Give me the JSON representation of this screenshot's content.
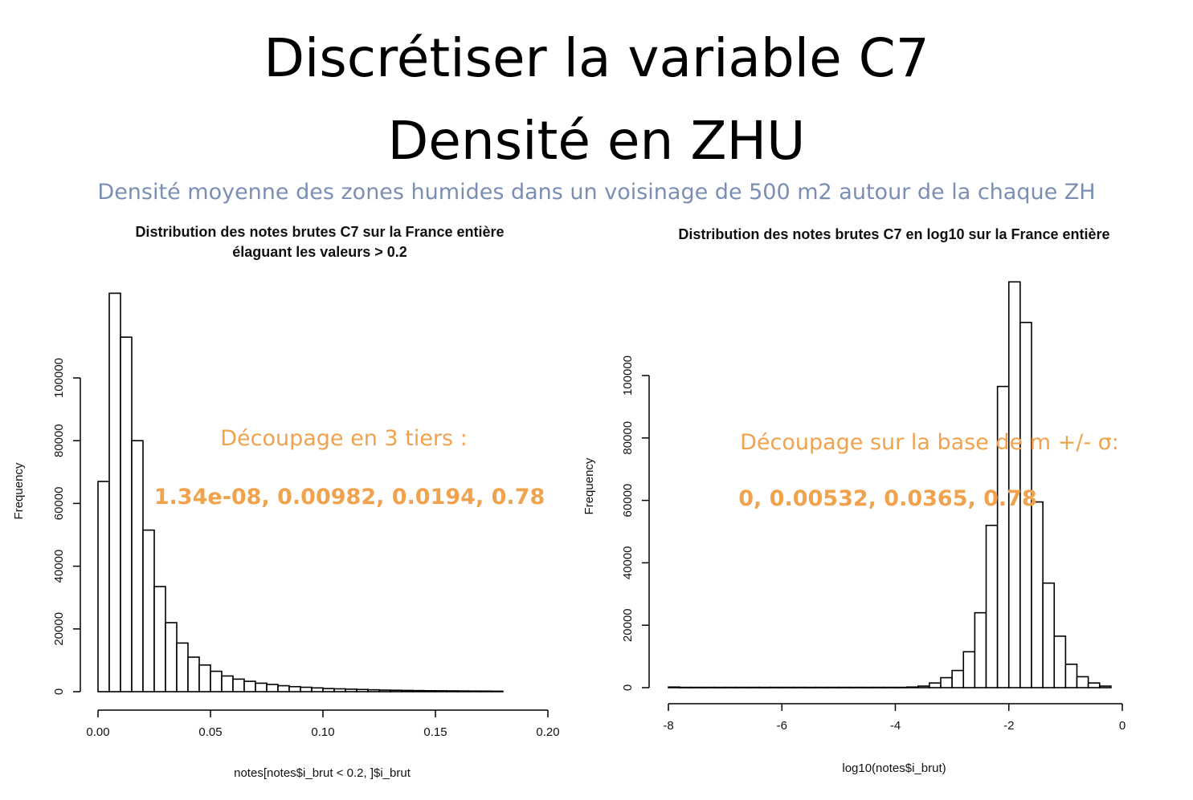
{
  "slide": {
    "title_line1": "Discrétiser la variable C7",
    "title_line2": "Densité en ZHU",
    "subtitle": "Densité moyenne des zones humides dans un voisinage de 500 m2 autour de la chaque ZH",
    "accent_color": "#f0a24d",
    "subtitle_color": "#7a8fb3"
  },
  "annotations": {
    "left_label": "Découpage en 3 tiers :",
    "left_values": "1.34e-08, 0.00982, 0.0194, 0.78",
    "right_label": "Découpage sur la base de m +/- σ:",
    "right_values": "0, 0.00532, 0.0365, 0.78"
  },
  "chart_data": [
    {
      "type": "bar",
      "title": "Distribution des notes brutes C7 sur la France entière",
      "subtitle": "élaguant les valeurs > 0.2",
      "xlabel": "notes[notes$i_brut < 0.2, ]$i_brut",
      "ylabel": "Frequency",
      "xlim": [
        0,
        0.2
      ],
      "ylim": [
        0,
        120000
      ],
      "x_ticks": [
        "0.00",
        "0.05",
        "0.10",
        "0.15",
        "0.20"
      ],
      "y_ticks": [
        "0",
        "20000",
        "40000",
        "60000",
        "80000",
        "100000"
      ],
      "bin_width": 0.005,
      "bin_starts": [
        0,
        0.005,
        0.01,
        0.015,
        0.02,
        0.025,
        0.03,
        0.035,
        0.04,
        0.045,
        0.05,
        0.055,
        0.06,
        0.065,
        0.07,
        0.075,
        0.08,
        0.085,
        0.09,
        0.095,
        0.1,
        0.105,
        0.11,
        0.115,
        0.12,
        0.125,
        0.13,
        0.135,
        0.14,
        0.145,
        0.15,
        0.155,
        0.16,
        0.165,
        0.17,
        0.175
      ],
      "values": [
        67000,
        127000,
        113000,
        80000,
        51500,
        33500,
        22000,
        15500,
        11000,
        8500,
        6500,
        5000,
        4000,
        3300,
        2700,
        2300,
        1900,
        1600,
        1400,
        1200,
        1000,
        900,
        800,
        700,
        600,
        500,
        450,
        400,
        350,
        300,
        280,
        250,
        220,
        200,
        180,
        150
      ],
      "grid": false
    },
    {
      "type": "bar",
      "title": "Distribution des notes brutes C7 en log10 sur la France entière",
      "xlabel": "log10(notes$i_brut)",
      "ylabel": "Frequency",
      "xlim": [
        -8,
        0
      ],
      "ylim": [
        0,
        120000
      ],
      "x_ticks": [
        "-8",
        "-6",
        "-4",
        "-2",
        "0"
      ],
      "y_ticks": [
        "0",
        "20000",
        "40000",
        "60000",
        "80000",
        "100000"
      ],
      "bin_width": 0.2,
      "bin_starts": [
        -8,
        -7.8,
        -7.6,
        -7.4,
        -7.2,
        -7,
        -6.8,
        -6.6,
        -6.4,
        -6.2,
        -6,
        -5.8,
        -5.6,
        -5.4,
        -5.2,
        -5,
        -4.8,
        -4.6,
        -4.4,
        -4.2,
        -4,
        -3.8,
        -3.6,
        -3.4,
        -3.2,
        -3,
        -2.8,
        -2.6,
        -2.4,
        -2.2,
        -2,
        -1.8,
        -1.6,
        -1.4,
        -1.2,
        -1,
        -0.8,
        -0.6,
        -0.4
      ],
      "values": [
        200,
        100,
        100,
        100,
        100,
        100,
        100,
        100,
        100,
        100,
        100,
        100,
        100,
        100,
        100,
        100,
        100,
        100,
        100,
        100,
        100,
        200,
        500,
        1500,
        3200,
        5500,
        11500,
        24000,
        52000,
        96500,
        130000,
        117000,
        59500,
        33500,
        16500,
        7500,
        3500,
        1500,
        500
      ],
      "grid": false
    }
  ]
}
